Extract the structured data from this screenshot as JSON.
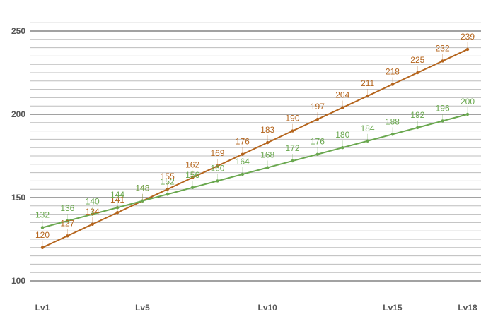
{
  "chart_data": {
    "type": "line",
    "x": [
      "Lv1",
      "Lv2",
      "Lv3",
      "Lv4",
      "Lv5",
      "Lv6",
      "Lv7",
      "Lv8",
      "Lv9",
      "Lv10",
      "Lv11",
      "Lv12",
      "Lv13",
      "Lv14",
      "Lv15",
      "Lv16",
      "Lv17",
      "Lv18"
    ],
    "x_tick_labels": [
      "Lv1",
      "Lv5",
      "Lv10",
      "Lv15",
      "Lv18"
    ],
    "series": [
      {
        "values": [
          120,
          127,
          134,
          141,
          148,
          155,
          162,
          169,
          176,
          183,
          190,
          197,
          204,
          211,
          218,
          225,
          232,
          239
        ],
        "color": "#b5651d"
      },
      {
        "values": [
          132,
          136,
          140,
          144,
          148,
          152,
          156,
          160,
          164,
          168,
          172,
          176,
          180,
          184,
          188,
          192,
          196,
          200
        ],
        "color": "#6aa84f"
      }
    ],
    "y_ticks": [
      100,
      150,
      200,
      250
    ],
    "ylim": [
      95,
      255
    ],
    "grid": true,
    "legend": "none",
    "title": "",
    "xlabel": "",
    "ylabel": ""
  }
}
